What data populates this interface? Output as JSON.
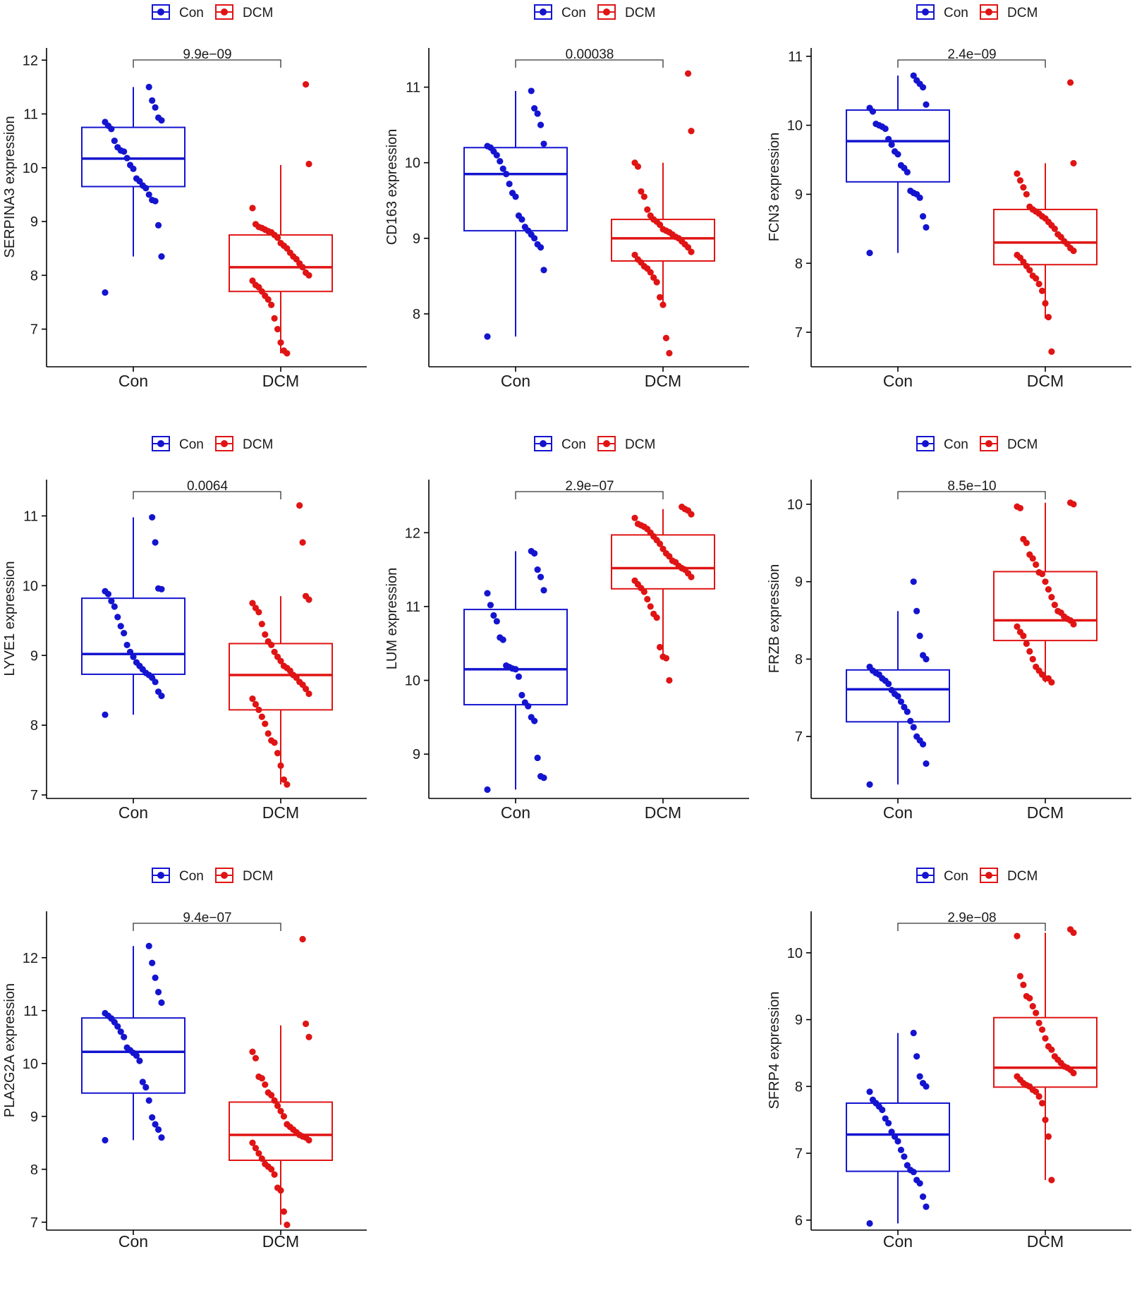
{
  "colors": {
    "con": "#1414d0",
    "dcm": "#e01414",
    "axis": "#000000"
  },
  "legend": {
    "items": [
      "Con",
      "DCM"
    ]
  },
  "chart_data": [
    {
      "type": "box",
      "ylabel": "SERPINA3 expression",
      "categories": [
        "Con",
        "DCM"
      ],
      "ylim": [
        6.3,
        12.2
      ],
      "yticks": [
        7,
        8,
        9,
        10,
        11,
        12
      ],
      "pvalue": "9.9e−09",
      "boxes": [
        {
          "group": "Con",
          "min": 8.35,
          "q1": 9.65,
          "median": 10.17,
          "q3": 10.75,
          "max": 11.5,
          "points": [
            7.68,
            8.35,
            8.93,
            9.38,
            9.4,
            9.5,
            9.62,
            9.67,
            9.75,
            9.8,
            9.98,
            10.05,
            10.18,
            10.3,
            10.32,
            10.38,
            10.5,
            10.72,
            10.78,
            10.85,
            10.88,
            10.93,
            11.12,
            11.25,
            11.5
          ]
        },
        {
          "group": "DCM",
          "min": 6.55,
          "q1": 7.7,
          "median": 8.15,
          "q3": 8.75,
          "max": 10.05,
          "points": [
            6.55,
            6.6,
            6.75,
            7.0,
            7.2,
            7.45,
            7.55,
            7.62,
            7.7,
            7.78,
            7.82,
            7.9,
            8.0,
            8.05,
            8.15,
            8.22,
            8.3,
            8.35,
            8.42,
            8.5,
            8.55,
            8.6,
            8.7,
            8.75,
            8.8,
            8.82,
            8.85,
            8.88,
            8.9,
            8.95,
            9.25,
            10.07,
            11.55
          ]
        }
      ]
    },
    {
      "type": "box",
      "ylabel": "CD163 expression",
      "categories": [
        "Con",
        "DCM"
      ],
      "ylim": [
        7.3,
        11.5
      ],
      "yticks": [
        8,
        9,
        10,
        11
      ],
      "pvalue": "0.00038",
      "boxes": [
        {
          "group": "Con",
          "min": 7.7,
          "q1": 9.1,
          "median": 9.85,
          "q3": 10.2,
          "max": 10.95,
          "points": [
            7.7,
            8.58,
            8.88,
            8.92,
            9.0,
            9.05,
            9.1,
            9.15,
            9.25,
            9.3,
            9.55,
            9.6,
            9.72,
            9.85,
            9.92,
            10.02,
            10.1,
            10.15,
            10.2,
            10.22,
            10.25,
            10.5,
            10.65,
            10.72,
            10.95
          ]
        },
        {
          "group": "DCM",
          "min": 8.12,
          "q1": 8.7,
          "median": 9.0,
          "q3": 9.25,
          "max": 10.0,
          "points": [
            7.48,
            7.68,
            8.12,
            8.22,
            8.42,
            8.48,
            8.55,
            8.6,
            8.63,
            8.68,
            8.72,
            8.78,
            8.82,
            8.88,
            8.92,
            8.96,
            9.0,
            9.02,
            9.05,
            9.08,
            9.1,
            9.12,
            9.18,
            9.22,
            9.25,
            9.3,
            9.38,
            9.55,
            9.62,
            9.95,
            10.0,
            10.42,
            11.18
          ]
        }
      ]
    },
    {
      "type": "box",
      "ylabel": "FCN3 expression",
      "categories": [
        "Con",
        "DCM"
      ],
      "ylim": [
        6.5,
        11.1
      ],
      "yticks": [
        7,
        8,
        9,
        10,
        11
      ],
      "pvalue": "2.4e−09",
      "boxes": [
        {
          "group": "Con",
          "min": 8.15,
          "q1": 9.18,
          "median": 9.77,
          "q3": 10.22,
          "max": 10.72,
          "points": [
            8.15,
            8.52,
            8.68,
            8.95,
            9.0,
            9.02,
            9.05,
            9.32,
            9.38,
            9.42,
            9.58,
            9.62,
            9.72,
            9.8,
            9.95,
            9.98,
            10.0,
            10.02,
            10.2,
            10.25,
            10.3,
            10.55,
            10.6,
            10.65,
            10.72
          ]
        },
        {
          "group": "DCM",
          "min": 7.2,
          "q1": 7.98,
          "median": 8.3,
          "q3": 8.78,
          "max": 9.45,
          "points": [
            6.72,
            7.22,
            7.42,
            7.6,
            7.7,
            7.78,
            7.82,
            7.9,
            7.96,
            8.02,
            8.08,
            8.12,
            8.18,
            8.22,
            8.28,
            8.32,
            8.38,
            8.42,
            8.5,
            8.55,
            8.6,
            8.65,
            8.68,
            8.72,
            8.75,
            8.78,
            8.82,
            9.0,
            9.1,
            9.2,
            9.3,
            9.45,
            10.62
          ]
        }
      ]
    },
    {
      "type": "box",
      "ylabel": "LYVE1 expression",
      "categories": [
        "Con",
        "DCM"
      ],
      "ylim": [
        6.95,
        11.5
      ],
      "yticks": [
        7,
        8,
        9,
        10,
        11
      ],
      "pvalue": "0.0064",
      "boxes": [
        {
          "group": "Con",
          "min": 8.15,
          "q1": 8.73,
          "median": 9.02,
          "q3": 9.82,
          "max": 10.98,
          "points": [
            8.15,
            8.42,
            8.48,
            8.62,
            8.68,
            8.72,
            8.75,
            8.8,
            8.85,
            8.9,
            8.98,
            9.05,
            9.15,
            9.32,
            9.42,
            9.55,
            9.7,
            9.78,
            9.88,
            9.92,
            9.95,
            9.96,
            10.62,
            10.98
          ]
        },
        {
          "group": "DCM",
          "min": 7.15,
          "q1": 8.22,
          "median": 8.72,
          "q3": 9.17,
          "max": 9.85,
          "points": [
            7.15,
            7.22,
            7.42,
            7.6,
            7.75,
            7.78,
            7.88,
            8.02,
            8.12,
            8.22,
            8.3,
            8.38,
            8.45,
            8.52,
            8.58,
            8.62,
            8.68,
            8.72,
            8.78,
            8.82,
            8.85,
            8.92,
            8.98,
            9.05,
            9.15,
            9.2,
            9.3,
            9.45,
            9.62,
            9.68,
            9.75,
            9.8,
            9.85,
            10.62,
            11.15
          ]
        }
      ]
    },
    {
      "type": "box",
      "ylabel": "LUM expression",
      "categories": [
        "Con",
        "DCM"
      ],
      "ylim": [
        8.4,
        12.7
      ],
      "yticks": [
        9,
        10,
        11,
        12
      ],
      "pvalue": "2.9e−07",
      "boxes": [
        {
          "group": "Con",
          "min": 8.52,
          "q1": 9.67,
          "median": 10.15,
          "q3": 10.96,
          "max": 11.75,
          "points": [
            8.52,
            8.68,
            8.7,
            8.95,
            9.45,
            9.5,
            9.65,
            9.7,
            9.8,
            10.05,
            10.15,
            10.16,
            10.18,
            10.2,
            10.55,
            10.58,
            10.8,
            10.88,
            11.02,
            11.18,
            11.22,
            11.4,
            11.5,
            11.72,
            11.75
          ]
        },
        {
          "group": "DCM",
          "min": 10.32,
          "q1": 11.24,
          "median": 11.52,
          "q3": 11.97,
          "max": 12.32,
          "points": [
            10.0,
            10.3,
            10.32,
            10.45,
            10.85,
            10.9,
            11.0,
            11.1,
            11.2,
            11.25,
            11.3,
            11.35,
            11.4,
            11.45,
            11.5,
            11.52,
            11.55,
            11.6,
            11.62,
            11.68,
            11.72,
            11.78,
            11.85,
            11.9,
            11.95,
            12.0,
            12.05,
            12.08,
            12.1,
            12.12,
            12.2,
            12.25,
            12.3,
            12.32,
            12.35
          ]
        }
      ]
    },
    {
      "type": "box",
      "ylabel": "FRZB expression",
      "categories": [
        "Con",
        "DCM"
      ],
      "ylim": [
        6.2,
        10.3
      ],
      "yticks": [
        7,
        8,
        9,
        10
      ],
      "pvalue": "8.5e−10",
      "boxes": [
        {
          "group": "Con",
          "min": 6.38,
          "q1": 7.19,
          "median": 7.61,
          "q3": 7.86,
          "max": 8.62,
          "points": [
            6.38,
            6.65,
            6.9,
            6.95,
            7.0,
            7.12,
            7.2,
            7.32,
            7.38,
            7.45,
            7.52,
            7.55,
            7.6,
            7.68,
            7.72,
            7.75,
            7.8,
            7.82,
            7.85,
            7.9,
            8.0,
            8.05,
            8.3,
            8.62,
            9.0
          ]
        },
        {
          "group": "DCM",
          "min": 7.7,
          "q1": 8.24,
          "median": 8.5,
          "q3": 9.13,
          "max": 10.02,
          "points": [
            7.7,
            7.75,
            7.75,
            7.8,
            7.85,
            7.9,
            8.0,
            8.1,
            8.2,
            8.3,
            8.35,
            8.42,
            8.45,
            8.5,
            8.52,
            8.55,
            8.6,
            8.62,
            8.7,
            8.8,
            8.9,
            9.0,
            9.1,
            9.12,
            9.22,
            9.3,
            9.35,
            9.5,
            9.55,
            9.95,
            9.97,
            10.0,
            10.02
          ]
        }
      ]
    },
    {
      "type": "box",
      "ylabel": "PLA2G2A expression",
      "categories": [
        "Con",
        "DCM"
      ],
      "ylim": [
        6.85,
        12.85
      ],
      "yticks": [
        7,
        8,
        9,
        10,
        11,
        12
      ],
      "pvalue": "9.4e−07",
      "boxes": [
        {
          "group": "Con",
          "min": 8.55,
          "q1": 9.44,
          "median": 10.22,
          "q3": 10.86,
          "max": 12.22,
          "points": [
            8.55,
            8.6,
            8.75,
            8.85,
            8.98,
            9.3,
            9.55,
            9.65,
            10.05,
            10.15,
            10.2,
            10.25,
            10.3,
            10.5,
            10.6,
            10.7,
            10.78,
            10.85,
            10.9,
            10.95,
            11.15,
            11.35,
            11.62,
            11.9,
            12.22
          ]
        },
        {
          "group": "DCM",
          "min": 6.95,
          "q1": 8.17,
          "median": 8.65,
          "q3": 9.27,
          "max": 10.72,
          "points": [
            6.95,
            7.2,
            7.6,
            7.65,
            7.9,
            8.0,
            8.05,
            8.1,
            8.2,
            8.3,
            8.4,
            8.5,
            8.55,
            8.6,
            8.62,
            8.65,
            8.7,
            8.75,
            8.8,
            8.85,
            9.0,
            9.1,
            9.2,
            9.3,
            9.4,
            9.45,
            9.6,
            9.72,
            9.75,
            10.1,
            10.22,
            10.5,
            10.75,
            12.35
          ]
        }
      ]
    },
    {
      "type": "box",
      "ylabel": "SFRP4 expression",
      "categories": [
        "Con",
        "DCM"
      ],
      "ylim": [
        5.85,
        10.6
      ],
      "yticks": [
        6,
        7,
        8,
        9,
        10
      ],
      "pvalue": "2.9e−08",
      "boxes": [
        {
          "group": "Con",
          "min": 5.95,
          "q1": 6.73,
          "median": 7.28,
          "q3": 7.75,
          "max": 8.8,
          "points": [
            5.95,
            6.2,
            6.35,
            6.55,
            6.6,
            6.72,
            6.75,
            6.82,
            6.95,
            7.05,
            7.18,
            7.25,
            7.32,
            7.45,
            7.52,
            7.65,
            7.7,
            7.75,
            7.8,
            7.92,
            8.0,
            8.05,
            8.15,
            8.45,
            8.8
          ]
        },
        {
          "group": "DCM",
          "min": 6.6,
          "q1": 7.99,
          "median": 8.28,
          "q3": 9.03,
          "max": 10.3,
          "points": [
            6.6,
            7.25,
            7.5,
            7.75,
            7.85,
            7.92,
            7.95,
            8.0,
            8.02,
            8.05,
            8.1,
            8.15,
            8.2,
            8.25,
            8.28,
            8.3,
            8.35,
            8.4,
            8.45,
            8.55,
            8.6,
            8.72,
            8.85,
            8.95,
            9.1,
            9.2,
            9.32,
            9.35,
            9.52,
            9.65,
            10.25,
            10.3,
            10.35
          ]
        }
      ]
    }
  ]
}
